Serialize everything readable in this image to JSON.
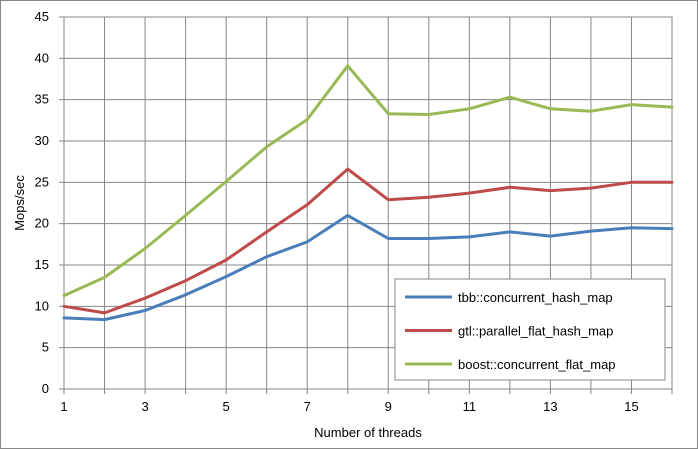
{
  "chart_data": {
    "type": "line",
    "title": "",
    "xlabel": "Number of threads",
    "ylabel": "Mops/sec",
    "x": [
      1,
      2,
      3,
      4,
      5,
      6,
      7,
      8,
      9,
      10,
      11,
      12,
      13,
      14,
      15,
      16
    ],
    "x_tick_labels": [
      "1",
      "3",
      "5",
      "7",
      "9",
      "11",
      "13",
      "15"
    ],
    "y_tick_labels": [
      "0",
      "5",
      "10",
      "15",
      "20",
      "25",
      "30",
      "35",
      "40",
      "45"
    ],
    "xlim": [
      1,
      16
    ],
    "ylim": [
      0,
      45
    ],
    "grid": true,
    "legend_position": "bottom-right",
    "series": [
      {
        "name": "tbb::concurrent_hash_map",
        "color": "#4a7ebb",
        "values": [
          8.6,
          8.4,
          9.5,
          11.4,
          13.6,
          16.0,
          17.8,
          21.0,
          18.2,
          18.2,
          18.4,
          19.0,
          18.5,
          19.1,
          19.5,
          19.4
        ]
      },
      {
        "name": "gtl::parallel_flat_hash_map",
        "color": "#be4b48",
        "values": [
          10.0,
          9.2,
          11.0,
          13.1,
          15.6,
          19.0,
          22.3,
          26.6,
          22.9,
          23.2,
          23.7,
          24.4,
          24.0,
          24.3,
          25.0,
          25.0
        ]
      },
      {
        "name": "boost::concurrent_flat_map",
        "color": "#98b954",
        "values": [
          11.3,
          13.5,
          17.0,
          21.0,
          25.1,
          29.3,
          32.6,
          39.1,
          33.3,
          33.2,
          33.9,
          35.3,
          33.9,
          33.6,
          34.4,
          34.1
        ]
      }
    ]
  }
}
